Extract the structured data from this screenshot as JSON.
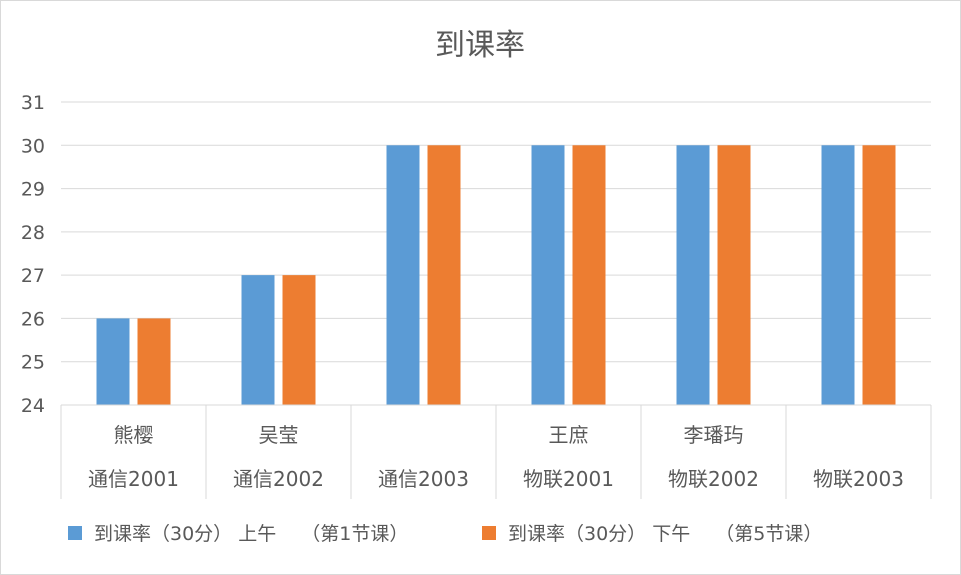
{
  "chart_data": {
    "type": "bar",
    "title": "到课率",
    "categories": [
      [
        "熊樱",
        "通信2001"
      ],
      [
        "吴莹",
        "通信2002"
      ],
      [
        "",
        "通信2003"
      ],
      [
        "王庶",
        "物联2001"
      ],
      [
        "李璠玙",
        "物联2002"
      ],
      [
        "",
        "物联2003"
      ]
    ],
    "series": [
      {
        "name": "到课率（30分） 上午　 （第1节课）",
        "color": "#5b9bd5",
        "values": [
          26,
          27,
          30,
          30,
          30,
          30
        ]
      },
      {
        "name": "到课率（30分） 下午　 （第5节课）",
        "color": "#ed7d31",
        "values": [
          26,
          27,
          30,
          30,
          30,
          30
        ]
      }
    ],
    "ylim": [
      24,
      31
    ],
    "yticks": [
      24,
      25,
      26,
      27,
      28,
      29,
      30,
      31
    ],
    "grid": true,
    "legend_position": "bottom"
  }
}
